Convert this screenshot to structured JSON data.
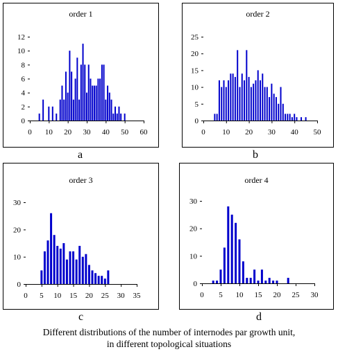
{
  "caption_line1": "Different distributions of the number of internodes par growth unit,",
  "caption_line2": "in different topological situations",
  "bar_color": "#0000cc",
  "chart_data": [
    {
      "type": "bar",
      "panel": "a",
      "title": "order 1",
      "ylim": [
        0,
        12
      ],
      "yticks": [
        0,
        2,
        4,
        6,
        8,
        10,
        12
      ],
      "xlim": [
        0,
        60
      ],
      "xticks": [
        0,
        10,
        20,
        30,
        40,
        50,
        60
      ],
      "x": [
        5,
        7,
        10,
        12,
        14,
        16,
        17,
        18,
        19,
        20,
        21,
        22,
        23,
        24,
        25,
        26,
        27,
        28,
        29,
        30,
        31,
        32,
        33,
        34,
        35,
        36,
        37,
        38,
        39,
        40,
        41,
        42,
        43,
        44,
        45,
        46,
        47,
        48,
        50
      ],
      "values": [
        1,
        3,
        2,
        2,
        1,
        3,
        5,
        3,
        7,
        4,
        10,
        7,
        3,
        6,
        9,
        3,
        8,
        11,
        8,
        4,
        8,
        6,
        5,
        5,
        5,
        6,
        6,
        8,
        8,
        3,
        5,
        4,
        3,
        1,
        2,
        1,
        2,
        1,
        1
      ]
    },
    {
      "type": "bar",
      "panel": "b",
      "title": "order 2",
      "ylim": [
        0,
        25
      ],
      "yticks": [
        0,
        5,
        10,
        15,
        20,
        25
      ],
      "xlim": [
        0,
        50
      ],
      "xticks": [
        0,
        10,
        20,
        30,
        40,
        50
      ],
      "x": [
        5,
        6,
        7,
        8,
        9,
        10,
        11,
        12,
        13,
        14,
        15,
        16,
        17,
        18,
        19,
        20,
        21,
        22,
        23,
        24,
        25,
        26,
        27,
        28,
        29,
        30,
        31,
        32,
        33,
        34,
        35,
        36,
        37,
        38,
        39,
        40,
        41,
        43,
        45
      ],
      "values": [
        2,
        2,
        12,
        10,
        12,
        10,
        12,
        14,
        14,
        13,
        21,
        10,
        14,
        12,
        21,
        13,
        10,
        11,
        12,
        15,
        12,
        14,
        10,
        10,
        7,
        11,
        8,
        7,
        5,
        10,
        5,
        2,
        2,
        2,
        1,
        2,
        1,
        1,
        1
      ]
    },
    {
      "type": "bar",
      "panel": "c",
      "title": "order 3",
      "ylim": [
        0,
        30
      ],
      "yticks": [
        0,
        10,
        20,
        30
      ],
      "xlim": [
        0,
        35
      ],
      "xticks": [
        0,
        5,
        10,
        15,
        20,
        25,
        30,
        35
      ],
      "x": [
        5,
        6,
        7,
        8,
        9,
        10,
        11,
        12,
        13,
        14,
        15,
        16,
        17,
        18,
        19,
        20,
        21,
        22,
        23,
        24,
        25,
        26
      ],
      "values": [
        5,
        12,
        16,
        26,
        18,
        14,
        13,
        15,
        9,
        12,
        12,
        9,
        14,
        10,
        11,
        7,
        5,
        4,
        3,
        3,
        2,
        5
      ]
    },
    {
      "type": "bar",
      "panel": "d",
      "title": "order 4",
      "ylim": [
        0,
        30
      ],
      "yticks": [
        0,
        10,
        20,
        30
      ],
      "xlim": [
        0,
        30
      ],
      "xticks": [
        0,
        5,
        10,
        15,
        20,
        25,
        30
      ],
      "x": [
        3,
        4,
        5,
        6,
        7,
        8,
        9,
        10,
        11,
        12,
        13,
        14,
        15,
        16,
        17,
        18,
        19,
        20,
        23
      ],
      "values": [
        1,
        1,
        5,
        13,
        28,
        25,
        22,
        16,
        8,
        2,
        2,
        5,
        1,
        5,
        1,
        2,
        1,
        1,
        2
      ]
    }
  ]
}
